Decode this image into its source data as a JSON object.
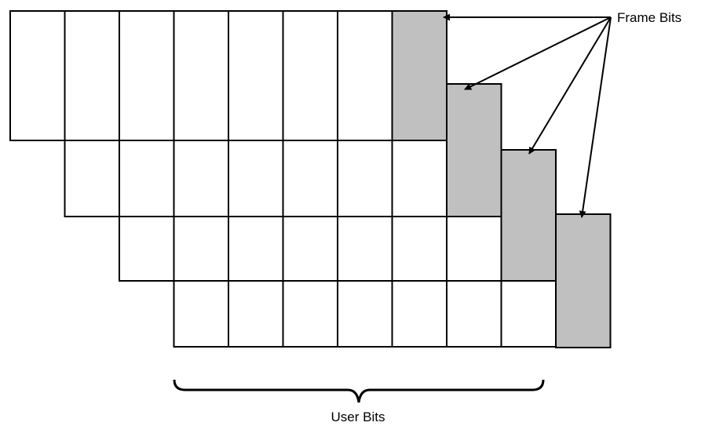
{
  "labels": {
    "frame_bits": "Frame Bits",
    "user_bits": "User Bits"
  },
  "colors": {
    "frame_bit_fill": "#c0c0c0",
    "user_bit_fill": "#ffffff",
    "stroke": "#000000"
  },
  "rows": [
    {
      "cells": [
        "user",
        "user",
        "user",
        "user",
        "user",
        "user",
        "user",
        "frame"
      ]
    },
    {
      "cells": [
        "user",
        "user",
        "user",
        "user",
        "user",
        "user",
        "user",
        "frame"
      ]
    },
    {
      "cells": [
        "user",
        "user",
        "user",
        "user",
        "user",
        "user",
        "user",
        "frame"
      ]
    },
    {
      "cells": [
        "user",
        "user",
        "user",
        "user",
        "user",
        "user",
        "user",
        "frame"
      ]
    }
  ]
}
